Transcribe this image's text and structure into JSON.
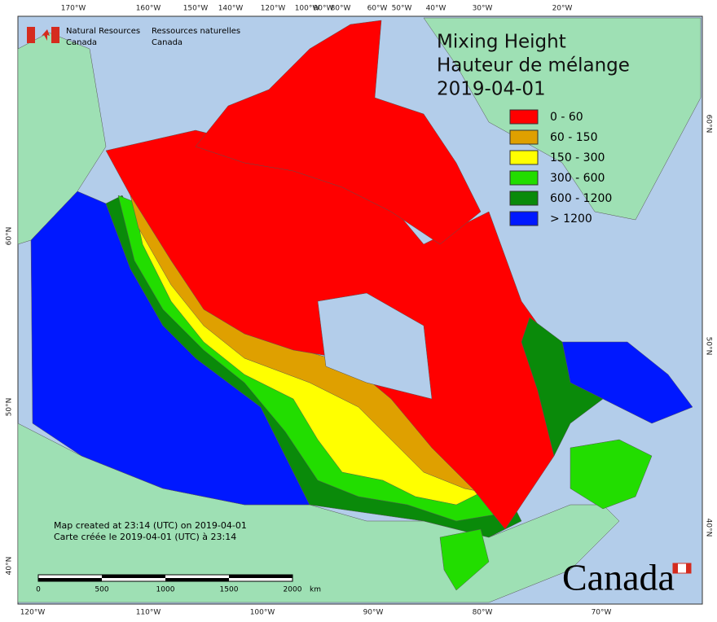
{
  "header": {
    "org_en": [
      "Natural Resources",
      "Canada"
    ],
    "org_fr": [
      "Ressources naturelles",
      "Canada"
    ]
  },
  "title": [
    "Mixing Height",
    "Hauteur de mélange",
    "2019-04-01"
  ],
  "legend": [
    {
      "label": "0 - 60",
      "color": "#ff0000"
    },
    {
      "label": "60 - 150",
      "color": "#dfa000"
    },
    {
      "label": "150 - 300",
      "color": "#ffff00"
    },
    {
      "label": "300 - 600",
      "color": "#22dd00"
    },
    {
      "label": "600 - 1200",
      "color": "#0a8a0a"
    },
    {
      "label": "> 1200",
      "color": "#0018ff"
    }
  ],
  "top_axis": [
    "170°W",
    "160°W",
    "150°W",
    "140°W",
    "120°W",
    "100°W",
    "90°W",
    "80°W",
    "60°W",
    "50°W",
    "40°W",
    "30°W",
    "20°W"
  ],
  "bottom_axis": [
    "120°W",
    "110°W",
    "100°W",
    "90°W",
    "80°W",
    "70°W"
  ],
  "left_axis": [
    "60°N",
    "50°N",
    "40°N"
  ],
  "right_axis": [
    "60°N",
    "50°N",
    "40°N"
  ],
  "credits": [
    "Map created at 23:14 (UTC) on 2019-04-01",
    "Carte créée le 2019-04-01 (UTC) à 23:14"
  ],
  "scale_bar": {
    "labels": [
      "0",
      "500",
      "1000",
      "1500",
      "2000"
    ],
    "unit": "km"
  },
  "wordmark": "Canada"
}
